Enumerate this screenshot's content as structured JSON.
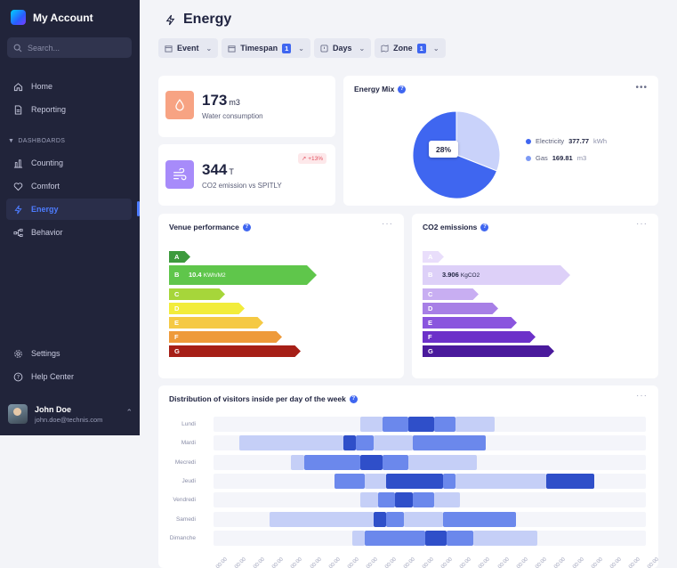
{
  "sidebar": {
    "brand": "My Account",
    "search_placeholder": "Search...",
    "items": [
      {
        "label": "Home"
      },
      {
        "label": "Reporting"
      }
    ],
    "section_label": "DASHBOARDS",
    "dashboards": [
      {
        "label": "Counting"
      },
      {
        "label": "Comfort"
      },
      {
        "label": "Energy"
      },
      {
        "label": "Behavior"
      }
    ],
    "bottom_items": [
      {
        "label": "Settings"
      },
      {
        "label": "Help Center"
      }
    ],
    "user": {
      "name": "John Doe",
      "email": "john.doe@technis.com"
    }
  },
  "header": {
    "title": "Energy",
    "filters": [
      {
        "label": "Event",
        "badge": ""
      },
      {
        "label": "Timespan",
        "badge": "1"
      },
      {
        "label": "Days",
        "badge": ""
      },
      {
        "label": "Zone",
        "badge": "1"
      }
    ]
  },
  "kpis": {
    "water": {
      "value": "173",
      "unit": "m3",
      "label": "Water consumption",
      "color": "#f7a383"
    },
    "co2": {
      "value": "344",
      "unit": "T",
      "label": "CO2 emission vs SPITLY",
      "trend": "+13%",
      "color": "#a78bfa"
    }
  },
  "energy_mix": {
    "title": "Energy Mix",
    "tooltip": "28%",
    "legend": [
      {
        "name": "Electricity",
        "value": "377.77",
        "unit": "kWh",
        "color": "#3f66f0"
      },
      {
        "name": "Gas",
        "value": "169.81",
        "unit": "m3",
        "color": "#c9d2fa"
      }
    ],
    "slices": [
      {
        "name": "Electricity",
        "fraction": 0.69,
        "color": "#3f66f0"
      },
      {
        "name": "Gas",
        "fraction": 0.31,
        "color": "#c9d2fa"
      }
    ]
  },
  "venue_performance": {
    "title": "Venue performance",
    "active_value": "10.4",
    "active_unit": "KWh/M2",
    "grades": [
      {
        "letter": "A",
        "color": "#3d9a3d"
      },
      {
        "letter": "B",
        "color": "#5fc64b"
      },
      {
        "letter": "C",
        "color": "#a6d63a"
      },
      {
        "letter": "D",
        "color": "#f2ec3b"
      },
      {
        "letter": "E",
        "color": "#f5c944"
      },
      {
        "letter": "F",
        "color": "#ee9a3a"
      },
      {
        "letter": "G",
        "color": "#a61f17"
      }
    ]
  },
  "co2_emissions": {
    "title": "CO2 emissions",
    "active_value": "3.906",
    "active_unit": "KgCO2",
    "grades": [
      {
        "letter": "A",
        "color": "#e9defb"
      },
      {
        "letter": "B",
        "color": "#ddd0f8"
      },
      {
        "letter": "C",
        "color": "#c8aef2"
      },
      {
        "letter": "D",
        "color": "#a77fe6"
      },
      {
        "letter": "E",
        "color": "#8a55de"
      },
      {
        "letter": "F",
        "color": "#6c31c9"
      },
      {
        "letter": "G",
        "color": "#4a1a9c"
      }
    ]
  },
  "visitors": {
    "title": "Distribution of visitors inside per day of the week",
    "days": [
      "Lundi",
      "Mardi",
      "Mecredi",
      "Jeudi",
      "Vendredi",
      "Samedi",
      "Dimanche"
    ],
    "ticks": [
      "00:00",
      "00:00",
      "00:00",
      "00:00",
      "00:00",
      "00:00",
      "00:00",
      "00:00",
      "00:00",
      "00:00",
      "00:00",
      "00:00",
      "00:00",
      "00:00",
      "00:00",
      "00:00",
      "00:00",
      "00:00",
      "00:00",
      "00:00",
      "00:00",
      "00:00",
      "00:00",
      "00:00"
    ]
  },
  "chart_data": {
    "type": "heatmap",
    "title": "Distribution of visitors inside per day of the week",
    "categories": [
      "Lundi",
      "Mardi",
      "Mecredi",
      "Jeudi",
      "Vendredi",
      "Samedi",
      "Dimanche"
    ],
    "note_levels": "0 = none, 1 = light, 2 = medium, 3 = dark",
    "rows": [
      {
        "day": "Lundi",
        "segments": [
          [
            0.34,
            0.39,
            1
          ],
          [
            0.39,
            0.45,
            2
          ],
          [
            0.45,
            0.51,
            3
          ],
          [
            0.51,
            0.56,
            2
          ],
          [
            0.56,
            0.65,
            1
          ]
        ]
      },
      {
        "day": "Mardi",
        "segments": [
          [
            0.06,
            0.3,
            1
          ],
          [
            0.3,
            0.33,
            3
          ],
          [
            0.33,
            0.37,
            2
          ],
          [
            0.37,
            0.46,
            1
          ],
          [
            0.46,
            0.63,
            2
          ]
        ]
      },
      {
        "day": "Mecredi",
        "segments": [
          [
            0.18,
            0.21,
            1
          ],
          [
            0.21,
            0.34,
            2
          ],
          [
            0.34,
            0.39,
            3
          ],
          [
            0.39,
            0.45,
            2
          ],
          [
            0.45,
            0.61,
            1
          ]
        ]
      },
      {
        "day": "Jeudi",
        "segments": [
          [
            0.28,
            0.35,
            2
          ],
          [
            0.35,
            0.4,
            1
          ],
          [
            0.4,
            0.53,
            3
          ],
          [
            0.53,
            0.56,
            2
          ],
          [
            0.56,
            0.77,
            1
          ],
          [
            0.77,
            0.88,
            3
          ]
        ]
      },
      {
        "day": "Vendredi",
        "segments": [
          [
            0.34,
            0.38,
            1
          ],
          [
            0.38,
            0.42,
            2
          ],
          [
            0.42,
            0.46,
            3
          ],
          [
            0.46,
            0.51,
            2
          ],
          [
            0.51,
            0.57,
            1
          ]
        ]
      },
      {
        "day": "Samedi",
        "segments": [
          [
            0.13,
            0.37,
            1
          ],
          [
            0.37,
            0.4,
            3
          ],
          [
            0.4,
            0.44,
            2
          ],
          [
            0.44,
            0.53,
            1
          ],
          [
            0.53,
            0.7,
            2
          ]
        ]
      },
      {
        "day": "Dimanche",
        "segments": [
          [
            0.32,
            0.35,
            1
          ],
          [
            0.35,
            0.49,
            2
          ],
          [
            0.49,
            0.54,
            3
          ],
          [
            0.54,
            0.6,
            2
          ],
          [
            0.6,
            0.75,
            1
          ]
        ]
      }
    ]
  }
}
